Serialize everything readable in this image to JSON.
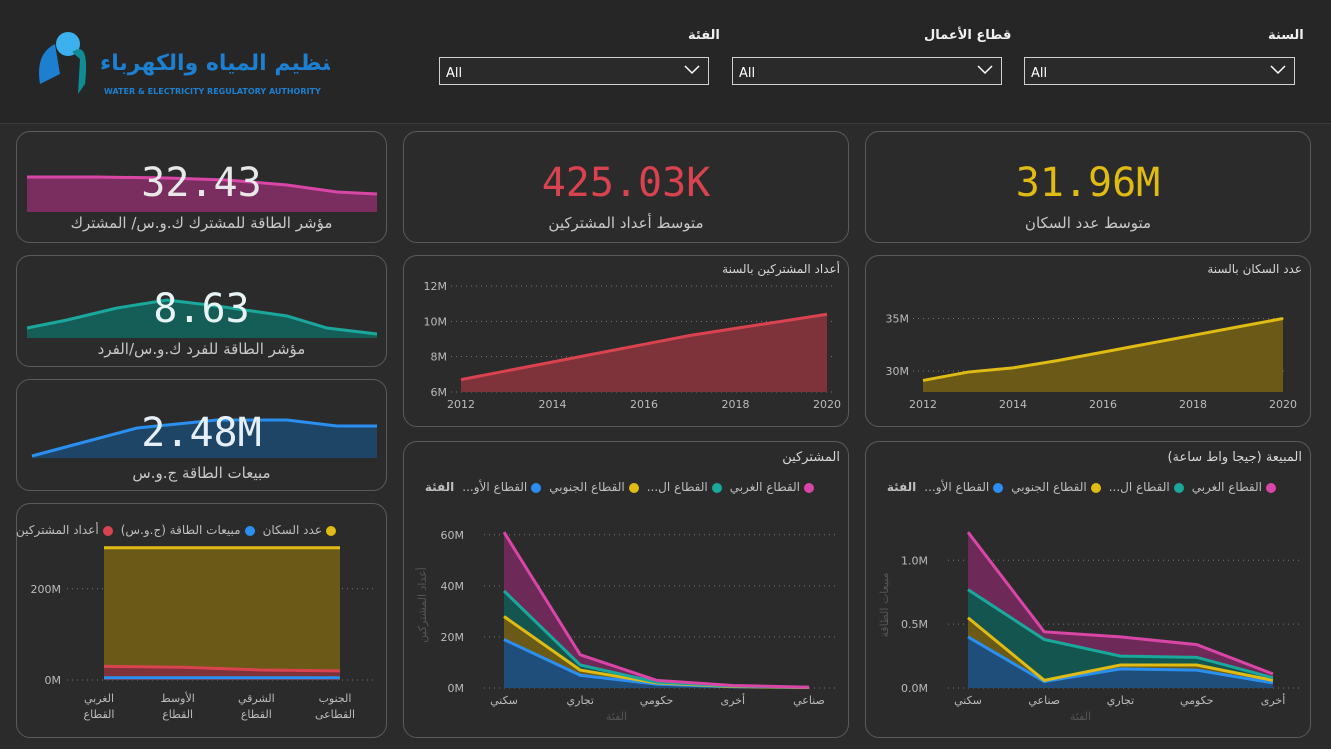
{
  "header": {
    "logo_arabic": "هيئة تنظيم المياه والكهرباء",
    "logo_english": "WATER & ELECTRICITY REGULATORY AUTHORITY",
    "slicers": [
      {
        "label": "الفئة",
        "value": "All"
      },
      {
        "label": "قطاع الأعمال",
        "value": "All"
      },
      {
        "label": "السنة",
        "value": "All"
      }
    ]
  },
  "kpis": {
    "subscriber_index": {
      "value": "32.43",
      "label": "مؤشر الطاقة للمشترك  ك.و.س/ المشترك"
    },
    "per_capita_index": {
      "value": "8.63",
      "label": "مؤشر الطاقة للفرد ك.و.س/الفرد"
    },
    "energy_sales": {
      "value": "2.48M",
      "label": "مبيعات الطاقة ج.و.س"
    },
    "avg_subscribers": {
      "value": "425.03K",
      "label": "متوسط أعداد المشتركين"
    },
    "avg_population": {
      "value": "31.96M",
      "label": "متوسط عدد السكان"
    }
  },
  "colors": {
    "pink": "#d946a8",
    "teal": "#1aa89c",
    "blue": "#2a8ff0",
    "yellow": "#e0bb14",
    "red": "#d9434f",
    "bg": "#2b2b2b"
  },
  "charts": {
    "subscribers_by_year": {
      "title": "أعداد المشتركين بالسنة",
      "type": "area",
      "x": [
        2012,
        2013,
        2014,
        2015,
        2016,
        2017,
        2018,
        2019,
        2020
      ],
      "y": [
        6.7,
        7.2,
        7.7,
        8.2,
        8.7,
        9.2,
        9.6,
        10.0,
        10.4
      ],
      "yticks": [
        "6M",
        "8M",
        "10M",
        "12M"
      ],
      "xticks": [
        "2012",
        "2014",
        "2016",
        "2018",
        "2020"
      ]
    },
    "population_by_year": {
      "title": "عدد السكان بالسنة",
      "type": "area",
      "x": [
        2012,
        2013,
        2014,
        2015,
        2016,
        2017,
        2018,
        2019,
        2020
      ],
      "y": [
        29.1,
        29.9,
        30.3,
        31.0,
        31.8,
        32.6,
        33.4,
        34.2,
        35.0
      ],
      "yticks": [
        "30M",
        "35M"
      ],
      "xticks": [
        "2012",
        "2014",
        "2016",
        "2018",
        "2020"
      ]
    },
    "subscribers_by_category": {
      "title": "المشتركين",
      "legend_title": "الفئة",
      "legend": [
        "القطاع الغربي",
        "القطاع ال...",
        "القطاع الجنوبي",
        "القطاع الأو..."
      ],
      "categories": [
        "سكني",
        "تجاري",
        "حكومي",
        "أخرى",
        "صناعي"
      ],
      "xlabel": "الفئة",
      "ylabel": "أعداد المشتركين",
      "yticks": [
        "0M",
        "20M",
        "40M",
        "60M"
      ],
      "series": [
        {
          "name": "القطاع الأو...",
          "values": [
            19,
            5,
            1.5,
            0.5,
            0.2
          ]
        },
        {
          "name": "القطاع الجنوبي",
          "values": [
            28,
            7,
            2,
            0.6,
            0.2
          ]
        },
        {
          "name": "القطاع ال...",
          "values": [
            38,
            9,
            2.3,
            0.8,
            0.3
          ]
        },
        {
          "name": "القطاع الغربي",
          "values": [
            61,
            13,
            3,
            1,
            0.3
          ]
        }
      ]
    },
    "sales_by_category": {
      "title": "المبيعة (جيجا واط ساعة)",
      "legend_title": "الفئة",
      "legend": [
        "القطاع الغربي",
        "القطاع ال...",
        "القطاع الجنوبي",
        "القطاع الأو..."
      ],
      "categories": [
        "سكني",
        "صناعي",
        "تجاري",
        "حكومي",
        "أخرى"
      ],
      "xlabel": "الفئة",
      "ylabel": "مبيعات الطاقة",
      "yticks": [
        "0.0M",
        "0.5M",
        "1.0M"
      ],
      "series": [
        {
          "name": "القطاع الأو...",
          "values": [
            0.4,
            0.05,
            0.15,
            0.14,
            0.04
          ]
        },
        {
          "name": "القطاع الجنوبي",
          "values": [
            0.55,
            0.06,
            0.18,
            0.18,
            0.06
          ]
        },
        {
          "name": "القطاع ال...",
          "values": [
            0.77,
            0.38,
            0.25,
            0.24,
            0.08
          ]
        },
        {
          "name": "القطاع الغربي",
          "values": [
            1.22,
            0.44,
            0.4,
            0.34,
            0.11
          ]
        }
      ]
    },
    "sector_combo": {
      "legend": [
        "عدد السكان",
        "مبيعات الطاقة (ج.و.س)",
        "أعداد المشتركين"
      ],
      "categories": [
        "القطاع الغربي",
        "القطاع الأوسط",
        "القطاع الشرقي",
        "القطاع الجنوبي"
      ],
      "category_lines": [
        [
          "الغربي",
          "القطاع"
        ],
        [
          "الأوسط",
          "القطاع"
        ],
        [
          "الشرقي",
          "القطاع"
        ],
        [
          "الجنوب",
          "القطاعى"
        ]
      ],
      "yticks": [
        "0M",
        "200M"
      ],
      "series": [
        {
          "name": "عدد السكان",
          "values": [
            290,
            290,
            290,
            290
          ]
        },
        {
          "name": "أعداد المشتركين",
          "values": [
            30,
            28,
            22,
            20
          ]
        },
        {
          "name": "مبيعات الطاقة (ج.و.س)",
          "values": [
            5,
            5,
            5,
            5
          ]
        }
      ]
    }
  }
}
